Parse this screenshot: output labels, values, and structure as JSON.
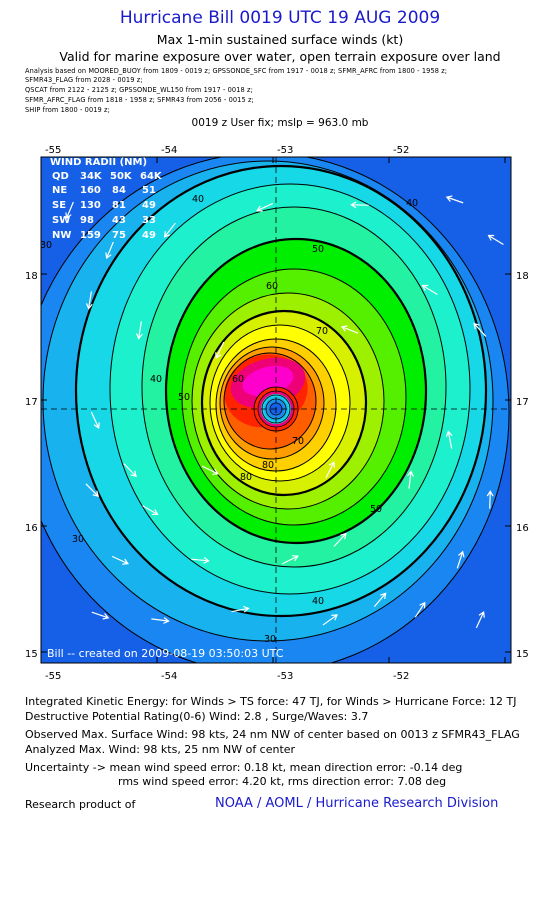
{
  "header": {
    "title": "Hurricane Bill 0019 UTC 19 AUG 2009",
    "subtitle": "Max 1-min sustained surface winds (kt)",
    "valid": "Valid for marine exposure over water, open terrain exposure over land"
  },
  "analysis_lines": [
    "Analysis based on   MOORED_BUOY from 1809 - 0019 z;   GPSSONDE_SFC from 1917 - 0018 z;   SFMR_AFRC from 1800 - 1958 z;",
    "SFMR43_FLAG from 2028 - 0019 z;",
    "QSCAT from 2122 - 2125 z;   GPSSONDE_WL150 from 1917 - 0018 z;",
    "SFMR_AFRC_FLAG from 1818 - 1958 z;   SFMR43 from 2056 - 0015 z;",
    "SHIP from 1800 - 0019 z;"
  ],
  "fix_line": "0019 z User fix; mslp = 963.0 mb",
  "wind_radii": {
    "title": "WIND RADII (NM)",
    "header": [
      "QD",
      "34K",
      "50K",
      "64K"
    ],
    "rows": [
      [
        "NE",
        "160",
        "84",
        "51"
      ],
      [
        "SE",
        "130",
        "81",
        "49"
      ],
      [
        "SW",
        "98",
        "43",
        "33"
      ],
      [
        "NW",
        "159",
        "75",
        "49"
      ]
    ]
  },
  "credit": "Bill -- created on 2009-08-19 03:50:03 UTC",
  "chart_data": {
    "type": "heatmap",
    "title": "Hurricane Bill 0019 UTC 19 AUG 2009",
    "x_ticks": [
      "-55",
      "-54",
      "-53",
      "-52"
    ],
    "y_ticks": [
      "18",
      "17",
      "16",
      "15"
    ],
    "xlim": [
      -55.05,
      -50.55
    ],
    "ylim": [
      14.95,
      19.0
    ],
    "center": {
      "lon": -53.0,
      "lat": 16.93
    },
    "contour_labels": [
      "40",
      "50",
      "60",
      "70",
      "80",
      "50",
      "30",
      "40",
      "30",
      "40",
      "50",
      "40",
      "30",
      "60",
      "80",
      "70"
    ],
    "thick_contours_kt": [
      34,
      50,
      64
    ],
    "colors": {
      "c15": "#1560e6",
      "c20": "#1a86f2",
      "c25": "#18b2ee",
      "c30": "#16d8e6",
      "c35": "#1df0cc",
      "c40": "#22f2a2",
      "c45": "#00ee00",
      "c50": "#55f000",
      "c55": "#9cf000",
      "c60": "#d6f000",
      "c65": "#ffff00",
      "c70": "#ffd000",
      "c75": "#ff9c00",
      "c80": "#ff5e00",
      "c85": "#ff2400",
      "c90": "#ee0077",
      "c95": "#ff00cc",
      "eye": "#20d0ee"
    }
  },
  "stats": {
    "ike": "Integrated Kinetic Energy:  for Winds > TS force: 47 TJ,  for Winds > Hurricane Force: 12 TJ",
    "dpr": "Destructive Potential Rating(0-6)   Wind: 2.8 , Surge/Waves: 3.7",
    "observed": "Observed Max. Surface Wind: 98 kts, 24 nm NW of center based on 0013 z SFMR43_FLAG",
    "analyzed": "Analyzed Max. Wind: 98 kts, 25 nm NW of center",
    "uncert1": "Uncertainty -> mean wind speed error: 0.18 kt,   mean direction error:  -0.14 deg",
    "uncert2": "rms wind speed error: 4.20 kt,   rms direction error: 7.08 deg"
  },
  "footer": {
    "research": "Research product of",
    "noaa": "NOAA / AOML / Hurricane Research Division"
  }
}
